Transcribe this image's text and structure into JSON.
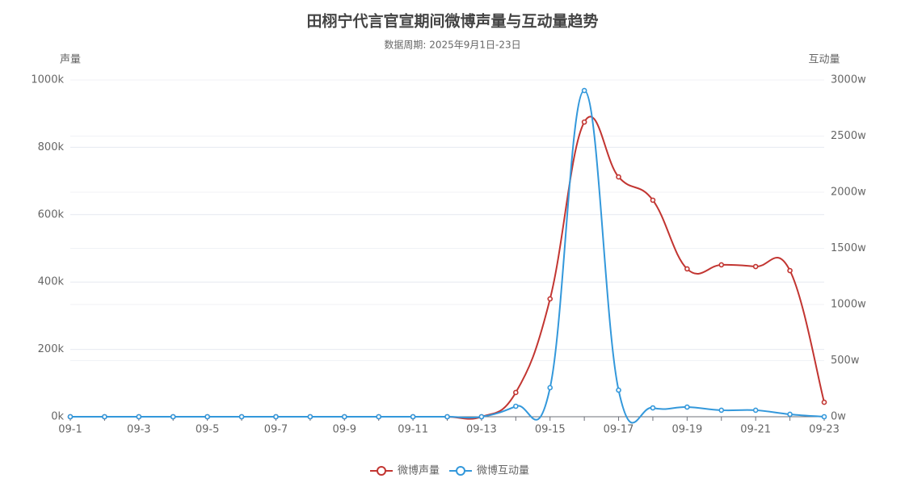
{
  "chart_data": {
    "type": "line",
    "title": "田栩宁代言官宣期间微博声量与互动量趋势",
    "subtitle": "数据周期: 2025年9月1日-23日",
    "y_label": "声量",
    "y2_label": "互动量",
    "categories": [
      "09-1",
      null,
      "09-3",
      null,
      "09-5",
      null,
      "09-7",
      null,
      "09-9",
      null,
      "09-11",
      null,
      "09-13",
      null,
      "09-15",
      null,
      "09-17",
      null,
      "09-19",
      null,
      "09-21",
      null,
      "09-23"
    ],
    "series": [
      {
        "name": "微博声量",
        "color": "#c23531",
        "axis": "y",
        "values": [
          0,
          0,
          0,
          0,
          0,
          0,
          0,
          0,
          0,
          0,
          0,
          0,
          0,
          72000,
          350000,
          875000,
          712000,
          643000,
          439000,
          451000,
          446000,
          434000,
          43000
        ]
      },
      {
        "name": "微博互动量",
        "color": "#3398db",
        "axis": "y2",
        "values": [
          0,
          0,
          0,
          0,
          0,
          0,
          0,
          0,
          0,
          0,
          0,
          0,
          0,
          935000,
          2590000,
          29060000,
          2370000,
          790000,
          860000,
          580000,
          580000,
          220000,
          0
        ]
      }
    ],
    "ylim": [
      0,
      1000000
    ],
    "yticks": [
      {
        "value": 0,
        "label": "0k"
      },
      {
        "value": 200000,
        "label": "200k"
      },
      {
        "value": 400000,
        "label": "400k"
      },
      {
        "value": 600000,
        "label": "600k"
      },
      {
        "value": 800000,
        "label": "800k"
      },
      {
        "value": 1000000,
        "label": "1000k"
      }
    ],
    "y2lim": [
      0,
      30000000
    ],
    "y2ticks": [
      {
        "value": 0,
        "label": "0w"
      },
      {
        "value": 5000000,
        "label": "500w"
      },
      {
        "value": 10000000,
        "label": "1000w"
      },
      {
        "value": 15000000,
        "label": "1500w"
      },
      {
        "value": 20000000,
        "label": "2000w"
      },
      {
        "value": 25000000,
        "label": "2500w"
      },
      {
        "value": 30000000,
        "label": "3000w"
      }
    ],
    "grid": true,
    "legend": "bottom"
  }
}
